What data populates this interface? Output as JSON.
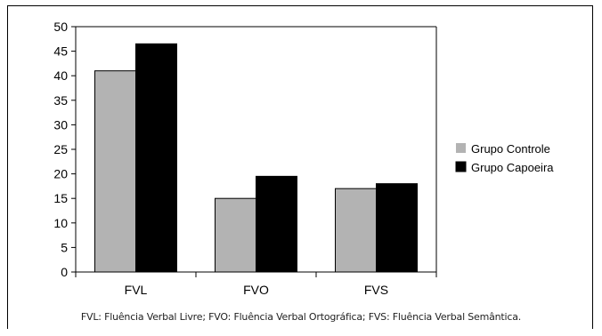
{
  "chart_data": {
    "type": "bar",
    "categories": [
      "FVL",
      "FVO",
      "FVS"
    ],
    "series": [
      {
        "name": "Grupo Controle",
        "values": [
          41,
          15,
          17
        ],
        "color": "#b3b3b3"
      },
      {
        "name": "Grupo Capoeira",
        "values": [
          46.5,
          19.5,
          18
        ],
        "color": "#000000"
      }
    ],
    "ylim": [
      0,
      50
    ],
    "yticks": [
      0,
      5,
      10,
      15,
      20,
      25,
      30,
      35,
      40,
      45,
      50
    ],
    "grid": false,
    "legend_position": "right"
  },
  "caption": "FVL: Fluência Verbal Livre; FVO: Fluência Verbal Ortográfica; FVS: Fluência Verbal Semântica."
}
